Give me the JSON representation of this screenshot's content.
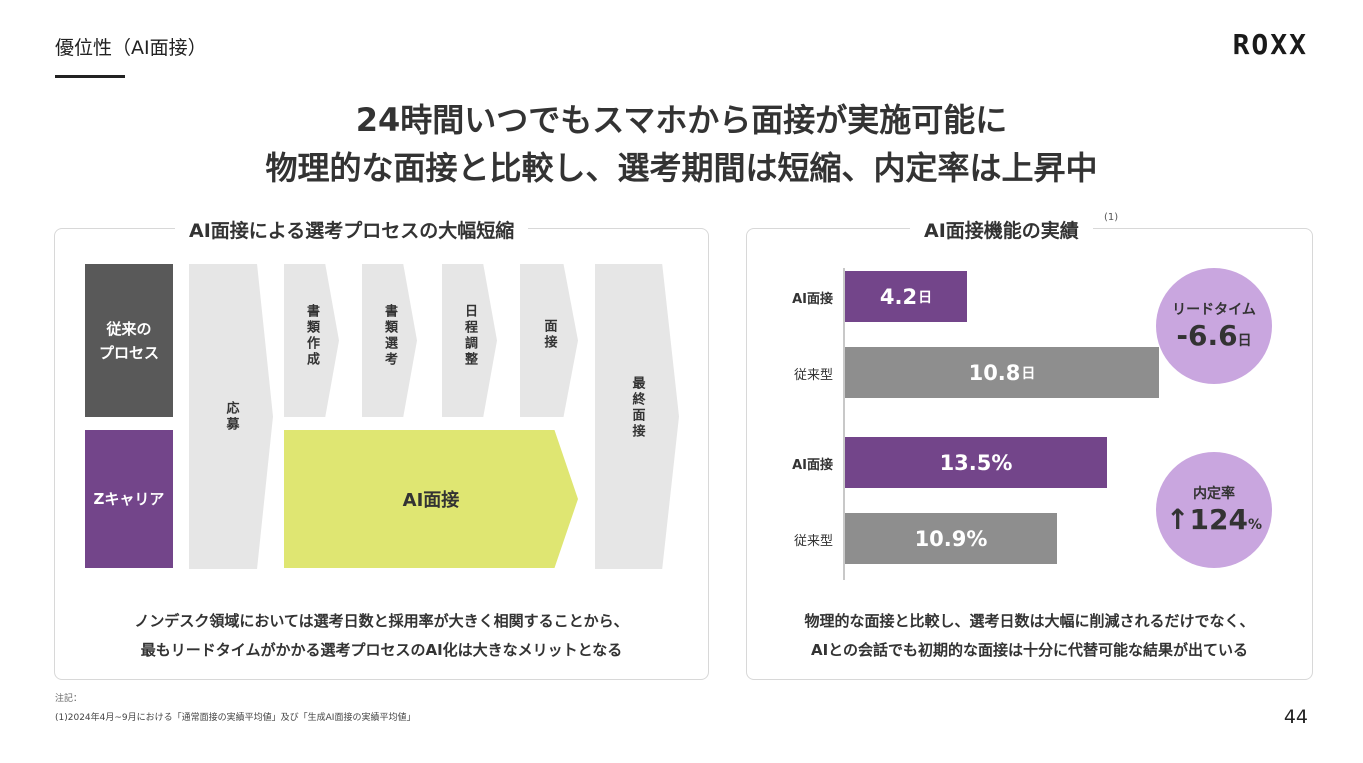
{
  "header": {
    "section_title": "優位性（AI面接）",
    "logo": "ROXX",
    "headline_line1": "24時間いつでもスマホから面接が実施可能に",
    "headline_line2": "物理的な面接と比較し、選考期間は短縮、内定率は上昇中"
  },
  "left_panel": {
    "title": "AI面接による選考プロセスの大幅短縮",
    "row_traditional": "従来の\nプロセス",
    "row_zcareer": "Zキャリア",
    "steps": {
      "apply": "応募",
      "doc_create": "書類作成",
      "doc_screen": "書類選考",
      "schedule": "日程調整",
      "interview": "面接",
      "final": "最終面接",
      "ai_interview": "AI面接"
    },
    "caption_line1": "ノンデスク領域においては選考日数と採用率が大きく相関することから、",
    "caption_line2": "最もリードタイムがかかる選考プロセスのAI化は大きなメリットとなる"
  },
  "right_panel": {
    "title": "AI面接機能の実績",
    "title_note": "(1)",
    "caption_line1": "物理的な面接と比較し、選考日数は大幅に削減されるだけでなく、",
    "caption_line2": "AIとの会話でも初期的な面接は十分に代替可能な結果が出ている",
    "lead_time_label": "リードタイム",
    "lead_time_value": "-6.6",
    "lead_time_unit": "日",
    "offer_rate_label": "内定率",
    "offer_rate_arrow": "↑",
    "offer_rate_value": "124",
    "offer_rate_unit": "%"
  },
  "chart_data": {
    "type": "bar",
    "orientation": "horizontal",
    "title": "AI面接機能の実績",
    "groups": [
      {
        "metric": "lead_time_days",
        "unit": "日",
        "bars": [
          {
            "label": "AI面接",
            "value": 4.2,
            "display": "4.2",
            "color": "#73458a"
          },
          {
            "label": "従来型",
            "value": 10.8,
            "display": "10.8",
            "color": "#8e8e8e"
          }
        ]
      },
      {
        "metric": "offer_rate_percent",
        "unit": "%",
        "bars": [
          {
            "label": "AI面接",
            "value": 13.5,
            "display": "13.5%",
            "color": "#73458a"
          },
          {
            "label": "従来型",
            "value": 10.9,
            "display": "10.9%",
            "color": "#8e8e8e"
          }
        ]
      }
    ],
    "grid": false
  },
  "footnote": {
    "heading": "注記：",
    "text": "(1)2024年4月~9月における「通常面接の実績平均値」及び「生成AI面接の実績平均値」"
  },
  "page_number": "44"
}
